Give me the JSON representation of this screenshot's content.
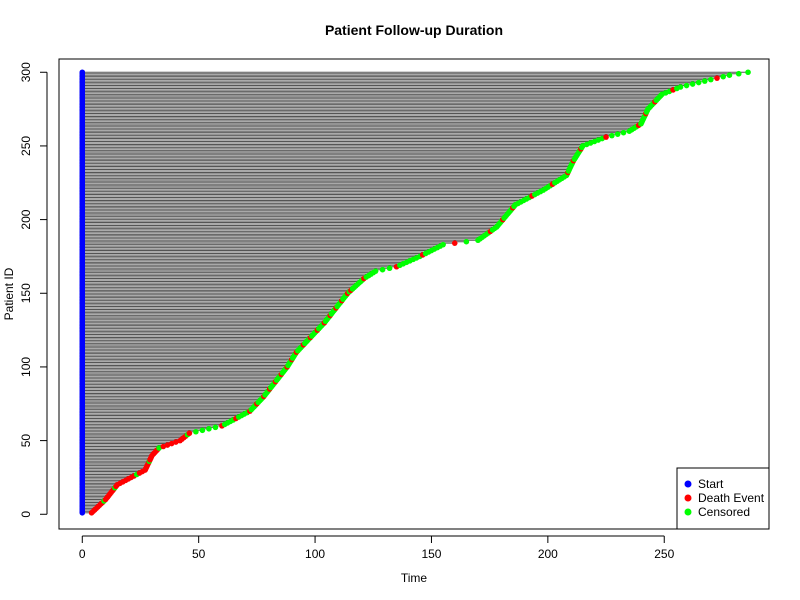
{
  "chart_data": {
    "type": "scatter",
    "title": "Patient Follow-up Duration",
    "xlabel": "Time",
    "ylabel": "Patient ID",
    "xlim": [
      -10,
      295
    ],
    "ylim": [
      -10,
      309
    ],
    "x_ticks": [
      0,
      50,
      100,
      150,
      200,
      250
    ],
    "y_ticks": [
      0,
      50,
      100,
      150,
      200,
      250,
      300
    ],
    "legend_position": "bottom-right",
    "grid": false,
    "n_patients": 300,
    "start_time": 0,
    "colors": {
      "segment": "#555555",
      "start": "#0000ff",
      "death": "#ff0000",
      "censored": "#00ff00"
    },
    "legend": [
      {
        "label": "Start",
        "color": "#0000ff"
      },
      {
        "label": "Death Event",
        "color": "#ff0000"
      },
      {
        "label": "Censored",
        "color": "#00ff00"
      }
    ],
    "end_time_profile": [
      {
        "id": 1,
        "time": 4
      },
      {
        "id": 10,
        "time": 10
      },
      {
        "id": 20,
        "time": 15
      },
      {
        "id": 30,
        "time": 27
      },
      {
        "id": 40,
        "time": 30
      },
      {
        "id": 45,
        "time": 33
      },
      {
        "id": 50,
        "time": 42
      },
      {
        "id": 55,
        "time": 46
      },
      {
        "id": 60,
        "time": 60
      },
      {
        "id": 70,
        "time": 72
      },
      {
        "id": 80,
        "time": 78
      },
      {
        "id": 90,
        "time": 83
      },
      {
        "id": 100,
        "time": 88
      },
      {
        "id": 110,
        "time": 92
      },
      {
        "id": 120,
        "time": 98
      },
      {
        "id": 130,
        "time": 104
      },
      {
        "id": 140,
        "time": 109
      },
      {
        "id": 150,
        "time": 114
      },
      {
        "id": 160,
        "time": 121
      },
      {
        "id": 165,
        "time": 126
      },
      {
        "id": 168,
        "time": 135
      },
      {
        "id": 175,
        "time": 145
      },
      {
        "id": 183,
        "time": 155
      },
      {
        "id": 186,
        "time": 170
      },
      {
        "id": 195,
        "time": 178
      },
      {
        "id": 210,
        "time": 186
      },
      {
        "id": 220,
        "time": 198
      },
      {
        "id": 230,
        "time": 208
      },
      {
        "id": 240,
        "time": 211
      },
      {
        "id": 250,
        "time": 215
      },
      {
        "id": 256,
        "time": 225
      },
      {
        "id": 260,
        "time": 235
      },
      {
        "id": 265,
        "time": 240
      },
      {
        "id": 275,
        "time": 243
      },
      {
        "id": 285,
        "time": 249
      },
      {
        "id": 290,
        "time": 257
      },
      {
        "id": 295,
        "time": 270
      },
      {
        "id": 298,
        "time": 278
      },
      {
        "id": 300,
        "time": 286
      }
    ],
    "events_by_id_ranges": [
      {
        "from": 1,
        "to": 55,
        "event": "death",
        "note_every_censored": 9
      },
      {
        "from": 56,
        "to": 150,
        "event": "mixed",
        "death_every": 5
      },
      {
        "from": 151,
        "to": 300,
        "event": "mostly_censored",
        "death_every": 8
      }
    ]
  }
}
